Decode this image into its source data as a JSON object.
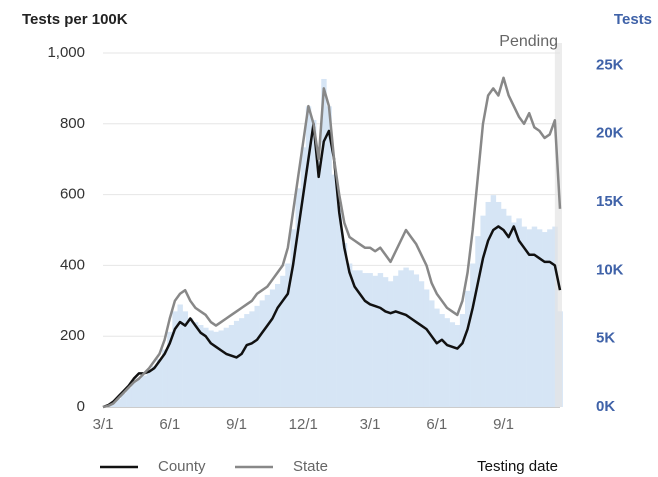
{
  "chart_data": {
    "type": "combo",
    "ylabel": "Tests per 100K",
    "y2label": "Tests",
    "xlabel": "Testing date",
    "categories": [
      "3/1",
      null,
      null,
      null,
      null,
      null,
      null,
      null,
      null,
      null,
      null,
      null,
      null,
      "6/1",
      null,
      null,
      null,
      null,
      null,
      null,
      null,
      null,
      null,
      null,
      null,
      null,
      "9/1",
      null,
      null,
      null,
      null,
      null,
      null,
      null,
      null,
      null,
      null,
      null,
      null,
      "12/1",
      null,
      null,
      null,
      null,
      null,
      null,
      null,
      null,
      null,
      null,
      null,
      null,
      "3/1",
      null,
      null,
      null,
      null,
      null,
      null,
      null,
      null,
      null,
      null,
      null,
      null,
      "6/1",
      null,
      null,
      null,
      null,
      null,
      null,
      null,
      null,
      null,
      null,
      null,
      null,
      "9/1",
      null,
      null,
      null,
      null,
      null,
      null,
      null,
      null,
      null,
      null,
      null
    ],
    "series": [
      {
        "name": "County",
        "color": "#111111",
        "type": "line",
        "values": [
          0,
          5,
          15,
          30,
          45,
          60,
          80,
          95,
          95,
          100,
          110,
          130,
          150,
          180,
          220,
          240,
          230,
          250,
          230,
          210,
          200,
          180,
          170,
          160,
          150,
          145,
          140,
          150,
          175,
          180,
          190,
          210,
          230,
          250,
          280,
          300,
          320,
          400,
          500,
          600,
          700,
          800,
          650,
          750,
          780,
          700,
          550,
          450,
          380,
          340,
          320,
          300,
          290,
          285,
          280,
          270,
          265,
          270,
          265,
          260,
          250,
          240,
          230,
          220,
          200,
          180,
          190,
          175,
          170,
          165,
          180,
          220,
          280,
          350,
          420,
          470,
          500,
          510,
          500,
          480,
          510,
          470,
          450,
          430,
          430,
          420,
          410,
          410,
          400,
          330
        ]
      },
      {
        "name": "State",
        "color": "#888888",
        "type": "line",
        "values": [
          0,
          3,
          10,
          25,
          40,
          55,
          70,
          80,
          95,
          110,
          130,
          150,
          190,
          250,
          300,
          320,
          330,
          300,
          280,
          270,
          260,
          240,
          230,
          240,
          250,
          260,
          270,
          280,
          290,
          300,
          320,
          330,
          340,
          360,
          380,
          400,
          450,
          550,
          650,
          750,
          850,
          800,
          700,
          900,
          850,
          700,
          600,
          520,
          480,
          470,
          460,
          450,
          450,
          440,
          450,
          430,
          410,
          440,
          470,
          500,
          480,
          460,
          430,
          400,
          350,
          320,
          300,
          280,
          270,
          260,
          300,
          380,
          500,
          650,
          800,
          880,
          900,
          880,
          930,
          880,
          850,
          820,
          800,
          830,
          790,
          780,
          760,
          770,
          810,
          560
        ]
      },
      {
        "color": "#d6e5f5",
        "type": "bar",
        "axis": "y2",
        "values": [
          0,
          100,
          300,
          600,
          1000,
          1400,
          1800,
          2100,
          2300,
          2600,
          3000,
          3500,
          4200,
          5500,
          7000,
          7500,
          7000,
          6500,
          6200,
          6000,
          5800,
          5600,
          5500,
          5600,
          5800,
          6000,
          6300,
          6500,
          6800,
          7000,
          7400,
          7800,
          8200,
          8600,
          9000,
          9600,
          10500,
          13000,
          16000,
          19000,
          22000,
          21000,
          18000,
          24000,
          22000,
          17000,
          15000,
          12000,
          10500,
          10000,
          10000,
          9800,
          9800,
          9600,
          9800,
          9500,
          9200,
          9600,
          10000,
          10200,
          10000,
          9700,
          9200,
          8600,
          7800,
          7200,
          6800,
          6500,
          6200,
          6000,
          6800,
          8500,
          10500,
          12500,
          14000,
          15000,
          15500,
          15000,
          14500,
          14000,
          13500,
          13800,
          13200,
          13000,
          13200,
          13000,
          12800,
          13000,
          13200,
          7000
        ]
      }
    ],
    "ylim": [
      0,
      1000
    ],
    "yticks": [
      0,
      200,
      400,
      600,
      800,
      {
        "value": 1000,
        "label": "1,000"
      }
    ],
    "y2lim": [
      0,
      25900
    ],
    "y2ticks": [
      {
        "value": 0,
        "label": "0K"
      },
      {
        "value": 5000,
        "label": "5K"
      },
      {
        "value": 10000,
        "label": "10K"
      },
      {
        "value": 15000,
        "label": "15K"
      },
      {
        "value": 20000,
        "label": "20K"
      },
      {
        "value": 25000,
        "label": "25K"
      }
    ],
    "grid": true,
    "annotations": [
      {
        "text": "Pending",
        "start_index": 88
      }
    ]
  }
}
